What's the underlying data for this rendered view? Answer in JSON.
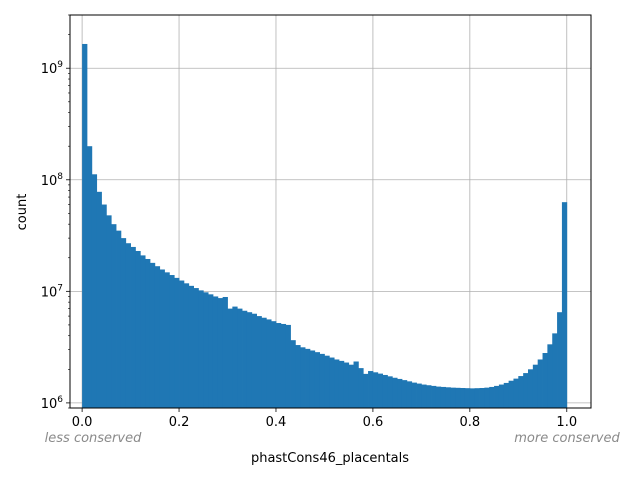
{
  "chart_data": {
    "type": "bar",
    "xlabel": "phastCons46_placentals",
    "ylabel": "count",
    "yscale": "log",
    "xlim": [
      -0.025,
      1.05
    ],
    "ylim": [
      900000,
      3000000000
    ],
    "grid": true,
    "bar_color": "#1f77b4",
    "bin_width": 0.01,
    "x_ticks": [
      {
        "value": 0.0,
        "label": "0.0"
      },
      {
        "value": 0.2,
        "label": "0.2"
      },
      {
        "value": 0.4,
        "label": "0.4"
      },
      {
        "value": 0.6,
        "label": "0.6"
      },
      {
        "value": 0.8,
        "label": "0.8"
      },
      {
        "value": 1.0,
        "label": "1.0"
      }
    ],
    "y_ticks": [
      {
        "value": 1000000,
        "base": "10",
        "exp": "6"
      },
      {
        "value": 10000000,
        "base": "10",
        "exp": "7"
      },
      {
        "value": 100000000,
        "base": "10",
        "exp": "8"
      },
      {
        "value": 1000000000,
        "base": "10",
        "exp": "9"
      }
    ],
    "annotations": {
      "left": "less conserved",
      "right": "more conserved"
    },
    "values": [
      1650000000,
      200000000,
      112000000,
      78000000,
      60000000,
      48000000,
      40000000,
      35000000,
      30000000,
      27000000,
      25000000,
      23000000,
      21000000,
      19500000,
      18000000,
      16800000,
      15700000,
      14800000,
      14000000,
      13200000,
      12500000,
      11800000,
      11200000,
      10700000,
      10200000,
      9800000,
      9400000,
      9000000,
      8700000,
      8900000,
      7000000,
      7300000,
      7000000,
      6700000,
      6500000,
      6300000,
      6000000,
      5800000,
      5600000,
      5400000,
      5200000,
      5100000,
      5000000,
      3650000,
      3300000,
      3150000,
      3050000,
      2950000,
      2850000,
      2750000,
      2650000,
      2550000,
      2450000,
      2380000,
      2300000,
      2200000,
      2350000,
      2050000,
      1820000,
      1930000,
      1880000,
      1830000,
      1780000,
      1730000,
      1680000,
      1640000,
      1600000,
      1560000,
      1520000,
      1490000,
      1460000,
      1440000,
      1420000,
      1400000,
      1390000,
      1380000,
      1370000,
      1365000,
      1360000,
      1355000,
      1350000,
      1355000,
      1360000,
      1370000,
      1390000,
      1420000,
      1460000,
      1510000,
      1580000,
      1650000,
      1740000,
      1850000,
      2000000,
      2200000,
      2450000,
      2800000,
      3350000,
      4200000,
      6500000,
      63000000
    ]
  }
}
